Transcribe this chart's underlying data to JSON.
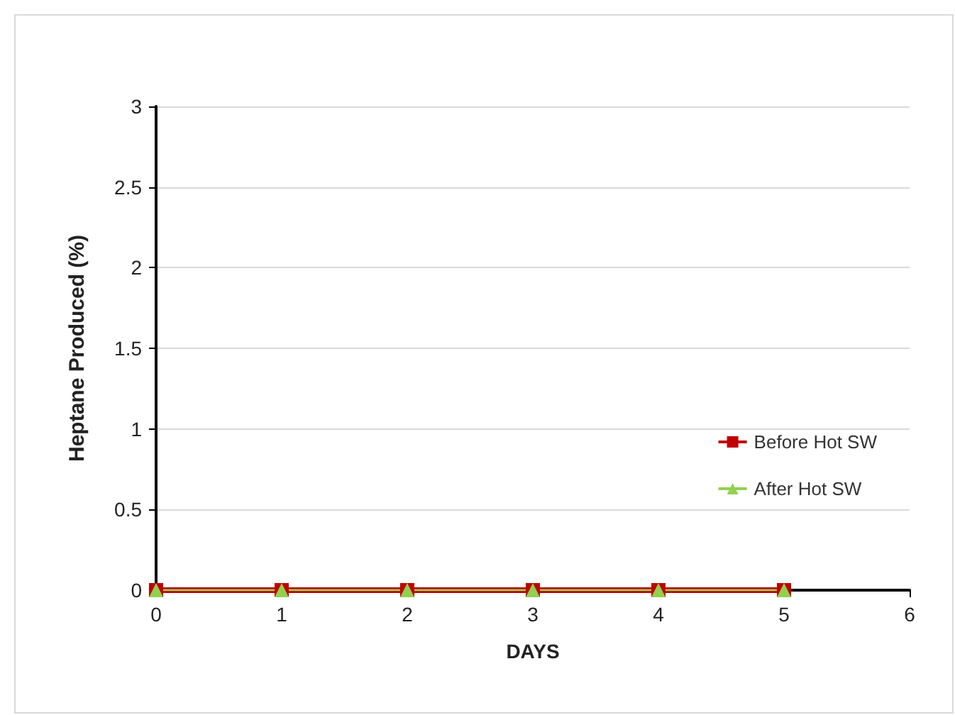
{
  "chart_data": {
    "type": "line",
    "xlabel": "DAYS",
    "ylabel": "Heptane Produced (%)",
    "x": [
      0,
      1,
      2,
      3,
      4,
      5
    ],
    "series": [
      {
        "name": "Before Hot SW",
        "color": "#c00000",
        "marker": "square",
        "values": [
          0,
          0,
          0,
          0,
          0,
          0
        ]
      },
      {
        "name": "After Hot SW",
        "color": "#92d050",
        "marker": "triangle",
        "values": [
          0,
          0,
          0,
          0,
          0,
          0
        ]
      }
    ],
    "xlim": [
      0,
      6
    ],
    "xticks": [
      0,
      1,
      2,
      3,
      4,
      5,
      6
    ],
    "ylim": [
      0,
      3
    ],
    "yticks": [
      0,
      0.5,
      1,
      1.5,
      2,
      2.5,
      3
    ],
    "grid": "y",
    "legend": "right",
    "line_style": "solid"
  }
}
